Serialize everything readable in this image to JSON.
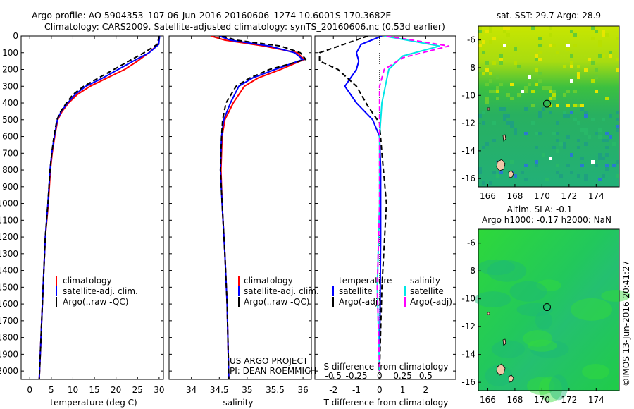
{
  "title_line1": "Argo profile: AO 5904353_107 06-Jun-2016 20160606_1274 10.6001S 170.3682E",
  "title_line2": "Climatology: CARS2009. Satellite-adjusted climatology: synTS_20160606.nc (0.53d earlier)",
  "credit": "©IMOS 13-Jun-2016 20:41:27",
  "project_line1": "US ARGO PROJECT",
  "project_line2": "PI: DEAN ROEMMICH",
  "colors": {
    "climatology": "#ff0000",
    "satellite": "#0000ff",
    "argo": "#000000",
    "sal_satellite": "#00e6e6",
    "sal_argo": "#ff00ff"
  },
  "depth_axis": {
    "range": [
      0,
      2050
    ],
    "reversed": true,
    "ticks": [
      "0",
      "100",
      "200",
      "300",
      "400",
      "500",
      "600",
      "700",
      "800",
      "900",
      "1000",
      "1100",
      "1200",
      "1300",
      "1400",
      "1500",
      "1600",
      "1700",
      "1800",
      "1900",
      "2000"
    ]
  },
  "chart_data": [
    {
      "type": "line",
      "id": "temperature",
      "xlabel": "temperature (deg C)",
      "xlim": [
        -2,
        31
      ],
      "xticks": [
        "0",
        "5",
        "10",
        "15",
        "20",
        "25",
        "30"
      ],
      "legend": [
        "climatology",
        "satellite-adj. clim.",
        "Argo(..raw -QC)"
      ],
      "series": [
        {
          "name": "climatology",
          "style": "solid",
          "color": "#ff0000",
          "points": [
            [
              30,
              0
            ],
            [
              29.8,
              50
            ],
            [
              27.6,
              100
            ],
            [
              25,
              150
            ],
            [
              22,
              200
            ],
            [
              18,
              250
            ],
            [
              14,
              300
            ],
            [
              11,
              350
            ],
            [
              9,
              400
            ],
            [
              7.5,
              450
            ],
            [
              6.5,
              500
            ],
            [
              5.8,
              600
            ],
            [
              5.2,
              700
            ],
            [
              4.8,
              800
            ],
            [
              4.3,
              1000
            ],
            [
              3.6,
              1200
            ],
            [
              3.1,
              1500
            ],
            [
              2.6,
              1800
            ],
            [
              2.2,
              2050
            ]
          ]
        },
        {
          "name": "satellite-adj. clim.",
          "style": "solid",
          "color": "#0000ff",
          "points": [
            [
              30.1,
              0
            ],
            [
              29.9,
              50
            ],
            [
              27.7,
              100
            ],
            [
              24,
              150
            ],
            [
              20.5,
              200
            ],
            [
              17,
              250
            ],
            [
              13,
              300
            ],
            [
              10.5,
              350
            ],
            [
              8.8,
              400
            ],
            [
              7.3,
              450
            ],
            [
              6.4,
              500
            ],
            [
              5.7,
              600
            ],
            [
              5.1,
              700
            ],
            [
              4.7,
              800
            ],
            [
              4.2,
              1000
            ],
            [
              3.6,
              1200
            ],
            [
              3.1,
              1500
            ],
            [
              2.6,
              1800
            ],
            [
              2.2,
              2050
            ]
          ]
        },
        {
          "name": "Argo(..raw -QC)",
          "style": "dashed",
          "color": "#000000",
          "points": [
            [
              30,
              0
            ],
            [
              29.6,
              50
            ],
            [
              26.5,
              100
            ],
            [
              23,
              150
            ],
            [
              19.5,
              200
            ],
            [
              16,
              250
            ],
            [
              12.5,
              300
            ],
            [
              10,
              350
            ],
            [
              8.5,
              400
            ],
            [
              7.2,
              450
            ],
            [
              6.3,
              500
            ],
            [
              5.6,
              600
            ],
            [
              5.1,
              700
            ],
            [
              4.7,
              800
            ],
            [
              4.2,
              1000
            ],
            [
              3.6,
              1200
            ],
            [
              3.1,
              1500
            ],
            [
              2.6,
              1800
            ],
            [
              2.2,
              2050
            ]
          ]
        }
      ]
    },
    {
      "type": "line",
      "id": "salinity",
      "xlabel": "salinity",
      "xlim": [
        33.6,
        36.15
      ],
      "xticks": [
        "34",
        "34.5",
        "35",
        "35.5",
        "36"
      ],
      "legend": [
        "climatology",
        "satellite-adj. clim.",
        "Argo(..raw -QC)"
      ],
      "series": [
        {
          "name": "climatology",
          "style": "solid",
          "color": "#ff0000",
          "points": [
            [
              34.35,
              0
            ],
            [
              34.6,
              25
            ],
            [
              35.3,
              60
            ],
            [
              35.9,
              100
            ],
            [
              36.02,
              140
            ],
            [
              35.6,
              200
            ],
            [
              35.2,
              250
            ],
            [
              34.95,
              300
            ],
            [
              34.75,
              400
            ],
            [
              34.6,
              500
            ],
            [
              34.55,
              600
            ],
            [
              34.53,
              800
            ],
            [
              34.55,
              1000
            ],
            [
              34.6,
              1300
            ],
            [
              34.64,
              1600
            ],
            [
              34.67,
              2050
            ]
          ]
        },
        {
          "name": "satellite-adj. clim.",
          "style": "solid",
          "color": "#0000ff",
          "points": [
            [
              34.5,
              0
            ],
            [
              34.7,
              25
            ],
            [
              35.4,
              60
            ],
            [
              35.85,
              100
            ],
            [
              36.0,
              140
            ],
            [
              35.5,
              200
            ],
            [
              35.1,
              250
            ],
            [
              34.85,
              300
            ],
            [
              34.7,
              400
            ],
            [
              34.58,
              500
            ],
            [
              34.54,
              600
            ],
            [
              34.52,
              800
            ],
            [
              34.55,
              1000
            ],
            [
              34.6,
              1300
            ],
            [
              34.64,
              1600
            ],
            [
              34.67,
              2050
            ]
          ]
        },
        {
          "name": "Argo(..raw -QC)",
          "style": "dashed",
          "color": "#000000",
          "points": [
            [
              34.55,
              0
            ],
            [
              34.8,
              25
            ],
            [
              35.6,
              60
            ],
            [
              35.95,
              100
            ],
            [
              36.05,
              140
            ],
            [
              35.4,
              200
            ],
            [
              35.05,
              250
            ],
            [
              34.8,
              300
            ],
            [
              34.62,
              400
            ],
            [
              34.56,
              500
            ],
            [
              34.54,
              600
            ],
            [
              34.52,
              800
            ],
            [
              34.55,
              1000
            ],
            [
              34.6,
              1300
            ],
            [
              34.64,
              1600
            ],
            [
              34.67,
              2050
            ]
          ]
        }
      ]
    },
    {
      "type": "line",
      "id": "difference",
      "xlabel": "T difference from climatology",
      "xlabel_top": "S difference from climatology",
      "xlim": [
        -2.8,
        3.3
      ],
      "xticks": [
        "-2",
        "-1",
        "0",
        "1",
        "2"
      ],
      "s_ticks": [
        "-0.5",
        "-0.25",
        "0",
        "0.25",
        "0.5"
      ],
      "s_per_t": 0.25,
      "legend_header_t": "temperature",
      "legend_header_s": "salinity",
      "legend_t": [
        "satellite",
        "Argo(-adj)"
      ],
      "legend_s": [
        "satellite",
        "Argo(-adj)"
      ],
      "series": [
        {
          "name": "temperature satellite",
          "style": "solid",
          "color": "#0000ff",
          "points": [
            [
              0.1,
              0
            ],
            [
              -0.8,
              50
            ],
            [
              -1.0,
              100
            ],
            [
              -0.9,
              150
            ],
            [
              -1.0,
              200
            ],
            [
              -1.5,
              300
            ],
            [
              -1.0,
              400
            ],
            [
              -0.3,
              500
            ],
            [
              0.0,
              600
            ],
            [
              0.05,
              800
            ],
            [
              0.05,
              1200
            ],
            [
              0.0,
              2000
            ]
          ]
        },
        {
          "name": "temperature Argo(-adj)",
          "style": "dashed",
          "color": "#000000",
          "points": [
            [
              -0.5,
              0
            ],
            [
              -2.6,
              100
            ],
            [
              -2.6,
              150
            ],
            [
              -1.8,
              200
            ],
            [
              -1.0,
              300
            ],
            [
              -0.5,
              420
            ],
            [
              0.0,
              520
            ],
            [
              0.1,
              700
            ],
            [
              0.3,
              1000
            ],
            [
              0.1,
              1500
            ],
            [
              0.0,
              2000
            ]
          ]
        },
        {
          "name": "salinity satellite",
          "style": "solid",
          "color": "#00e6e6",
          "points": [
            [
              0.2,
              0
            ],
            [
              2.6,
              60
            ],
            [
              1.0,
              120
            ],
            [
              0.4,
              200
            ],
            [
              0.1,
              400
            ],
            [
              0.0,
              600
            ],
            [
              0.0,
              1000
            ],
            [
              -0.1,
              1500
            ],
            [
              0.0,
              2000
            ]
          ]
        },
        {
          "name": "salinity Argo(-adj)",
          "style": "dashed",
          "color": "#ff00ff",
          "points": [
            [
              0.3,
              0
            ],
            [
              3.0,
              60
            ],
            [
              1.0,
              130
            ],
            [
              0.2,
              200
            ],
            [
              0.0,
              300
            ],
            [
              0.0,
              600
            ],
            [
              0.0,
              1000
            ],
            [
              -0.1,
              1500
            ],
            [
              0.0,
              2000
            ]
          ]
        }
      ]
    },
    {
      "type": "heatmap",
      "id": "sst_map",
      "title": "sat. SST: 29.7  Argo: 28.9",
      "xlim": [
        165.3,
        175.7
      ],
      "ylim": [
        -16.6,
        -5
      ],
      "xticks": [
        "166",
        "168",
        "170",
        "172",
        "174"
      ],
      "yticks": [
        "-6",
        "-8",
        "-10",
        "-12",
        "-14",
        "-16"
      ],
      "float_position": [
        170.37,
        -10.6
      ]
    },
    {
      "type": "heatmap",
      "id": "sla_map",
      "title_line1": "Altim. SLA: -0.1",
      "title_line2": "Argo h1000: -0.17  h2000: NaN",
      "xlim": [
        165.3,
        175.7
      ],
      "ylim": [
        -16.6,
        -5
      ],
      "xticks": [
        "166",
        "168",
        "170",
        "172",
        "174"
      ],
      "yticks": [
        "-6",
        "-8",
        "-10",
        "-12",
        "-14",
        "-16"
      ],
      "float_position": [
        170.37,
        -10.6
      ]
    }
  ]
}
